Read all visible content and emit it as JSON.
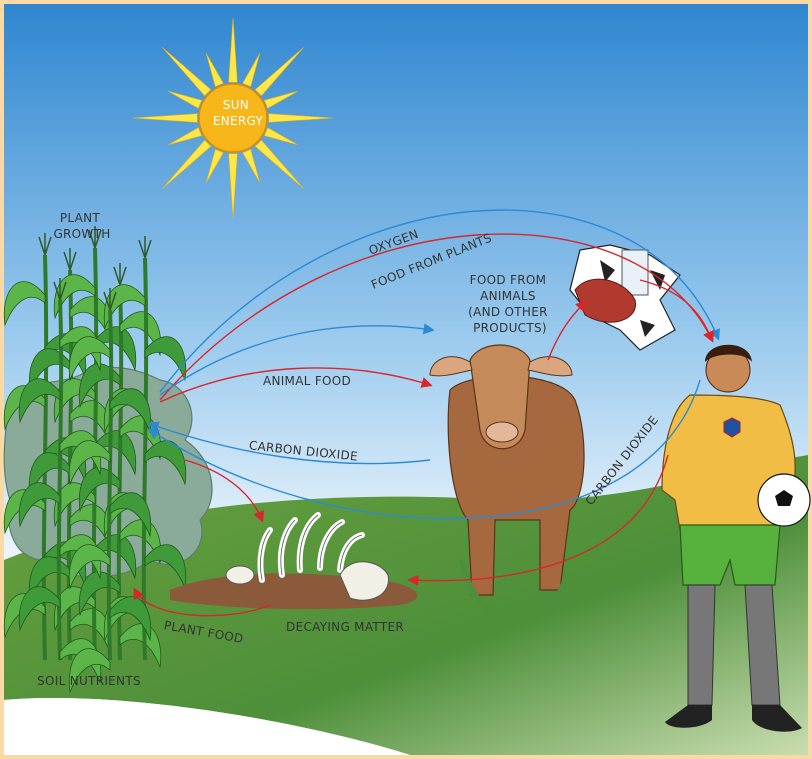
{
  "labels": {
    "sun_energy": [
      "SUN",
      "ENERGY"
    ],
    "plant_growth": [
      "PLANT",
      "GROWTH"
    ],
    "oxygen": "OXYGEN",
    "food_from_plants": "FOOD FROM PLANTS",
    "food_from_animals": [
      "FOOD FROM",
      "ANIMALS",
      "(AND OTHER",
      "PRODUCTS)"
    ],
    "animal_food": "ANIMAL FOOD",
    "carbon_dioxide_to_plant": "CARBON DIOXIDE",
    "carbon_dioxide_from_person": "CARBON DIOXIDE",
    "plant_food": "PLANT FOOD",
    "decaying_matter": "DECAYING MATTER",
    "soil_nutrients": "SOIL NUTRIENTS"
  }
}
